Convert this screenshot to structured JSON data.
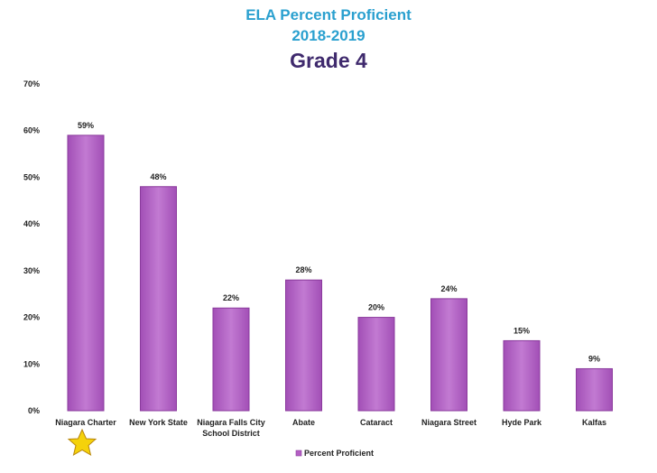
{
  "chart_data": {
    "type": "bar",
    "title": "ELA Percent Proficient",
    "subtitle": "2018-2019",
    "heading": "Grade 4",
    "categories": [
      [
        "Niagara Charter"
      ],
      [
        "New York State"
      ],
      [
        "Niagara Falls City",
        "School District"
      ],
      [
        "Abate"
      ],
      [
        "Cataract"
      ],
      [
        "Niagara Street"
      ],
      [
        "Hyde Park"
      ],
      [
        "Kalfas"
      ]
    ],
    "series": [
      {
        "name": "Percent Proficient",
        "values": [
          59,
          48,
          22,
          28,
          20,
          24,
          15,
          9
        ]
      }
    ],
    "data_labels": [
      "59%",
      "48%",
      "22%",
      "28%",
      "20%",
      "24%",
      "15%",
      "9%"
    ],
    "y_ticks": [
      "0%",
      "10%",
      "20%",
      "30%",
      "40%",
      "50%",
      "60%",
      "70%"
    ],
    "ylim": [
      0,
      70
    ],
    "grid": false,
    "legend_position": "bottom",
    "bar_color": "#b45fc4",
    "bar_edge_color": "#8a3a9c",
    "highlight_marker": "star-icon under Niagara Charter"
  }
}
